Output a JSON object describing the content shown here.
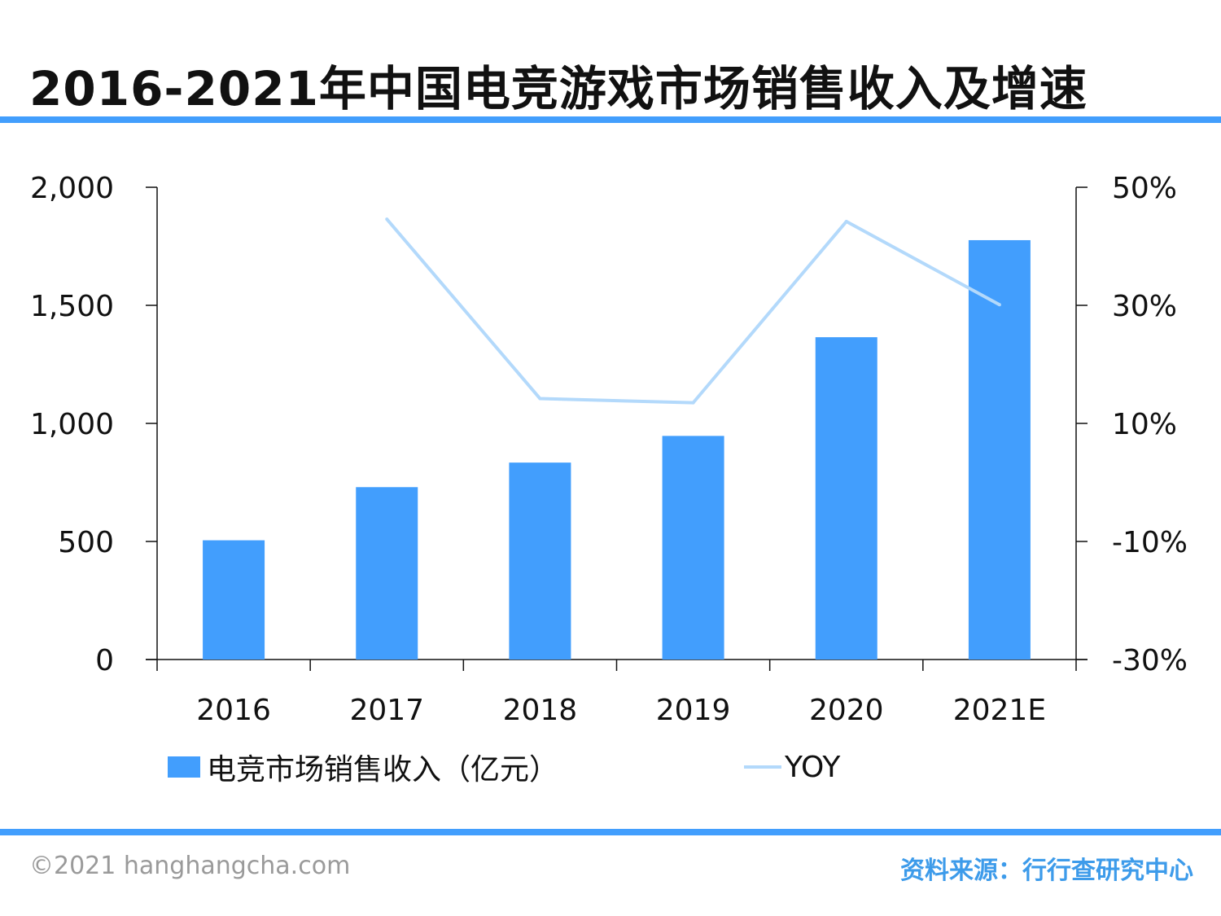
{
  "title": "2016-2021年中国电竞游戏市场销售收入及增速",
  "colors": {
    "bar": "#429EFD",
    "line": "#B3D9FB",
    "rule": "#429EFD",
    "axis": "#111111",
    "source": "#3D9BEA",
    "footer": "#9A9A9A"
  },
  "chart_data": {
    "type": "bar",
    "categories": [
      "2016",
      "2017",
      "2018",
      "2019",
      "2020",
      "2021E"
    ],
    "series": [
      {
        "name": "电竞市场销售收入（亿元）",
        "type": "bar",
        "axis": "left",
        "values": [
          505,
          730,
          834,
          947,
          1365,
          1776
        ]
      },
      {
        "name": "YOY",
        "type": "line",
        "axis": "right",
        "values": [
          null,
          44.6,
          14.2,
          13.5,
          44.2,
          30.1
        ]
      }
    ],
    "y_left": {
      "ylim": [
        0,
        2000
      ],
      "ticks": [
        0,
        500,
        1000,
        1500,
        2000
      ],
      "tick_labels": [
        "0",
        "500",
        "1,000",
        "1,500",
        "2,000"
      ]
    },
    "y_right": {
      "ylim": [
        -30,
        50
      ],
      "ticks": [
        -30,
        -10,
        10,
        30,
        50
      ],
      "tick_labels": [
        "-30%",
        "-10%",
        "10%",
        "30%",
        "50%"
      ]
    },
    "legend_position": "bottom",
    "grid": false
  },
  "legend": {
    "bar_label": "电竞市场销售收入（亿元）",
    "line_label": "YOY"
  },
  "footer": {
    "copyright": "©2021 hanghangcha.com",
    "source": "资料来源：行行查研究中心"
  }
}
